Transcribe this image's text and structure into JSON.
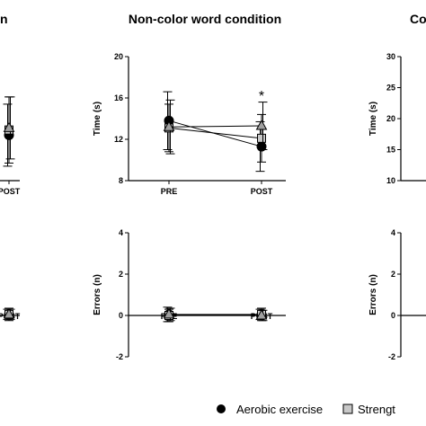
{
  "chart_data": [
    {
      "id": "left_time",
      "type": "line",
      "title": "n",
      "xlabel": "",
      "ylabel": "",
      "categories": [
        "PRE",
        "POST"
      ],
      "category_labels": [
        "",
        "POST"
      ],
      "ylim": [
        8,
        20
      ],
      "yticks": [],
      "series": [
        {
          "name": "Aerobic exercise",
          "marker": "circle",
          "values": [
            null,
            12.4
          ],
          "err": [
            null,
            3.0
          ]
        },
        {
          "name": "Strengt",
          "marker": "square",
          "values": [
            null,
            12.9
          ],
          "err": [
            null,
            3.2
          ]
        },
        {
          "name": "",
          "marker": "triangle",
          "values": [
            null,
            13.1
          ],
          "err": [
            null,
            3.0
          ]
        }
      ]
    },
    {
      "id": "middle_time",
      "type": "line",
      "title": "Non-color word condition",
      "xlabel": "",
      "ylabel": "Time (s)",
      "categories": [
        "PRE",
        "POST"
      ],
      "category_labels": [
        "PRE",
        "POST"
      ],
      "ylim": [
        8,
        20
      ],
      "yticks": [
        "8",
        "12",
        "16",
        "20"
      ],
      "annotation": "*",
      "series": [
        {
          "name": "Aerobic exercise",
          "marker": "circle",
          "values": [
            13.8,
            11.3
          ],
          "err": [
            2.8,
            2.4
          ]
        },
        {
          "name": "Strengt",
          "marker": "square",
          "values": [
            13.1,
            12.1
          ],
          "err": [
            2.3,
            2.3
          ]
        },
        {
          "name": "",
          "marker": "triangle",
          "values": [
            13.2,
            13.3
          ],
          "err": [
            2.6,
            2.3
          ]
        }
      ]
    },
    {
      "id": "right_time",
      "type": "line",
      "title": "Co",
      "xlabel": "",
      "ylabel": "Time (s)",
      "categories": [
        "PRE",
        "POST"
      ],
      "category_labels": [
        "",
        ""
      ],
      "ylim": [
        10,
        30
      ],
      "yticks": [
        "10",
        "15",
        "20",
        "25",
        "30"
      ],
      "series": []
    },
    {
      "id": "left_errors",
      "type": "line",
      "title": "",
      "xlabel": "",
      "ylabel": "",
      "categories": [
        "PRE",
        "POST"
      ],
      "category_labels": [
        "",
        "POST"
      ],
      "ylim": [
        -2,
        4
      ],
      "yticks": [],
      "series": [
        {
          "name": "Aerobic exercise",
          "marker": "circle",
          "values": [
            null,
            0.05
          ],
          "err": [
            null,
            0.25
          ]
        },
        {
          "name": "Strengt",
          "marker": "square",
          "values": [
            null,
            0.05
          ],
          "err": [
            null,
            0.3
          ]
        },
        {
          "name": "",
          "marker": "triangle",
          "values": [
            null,
            0.05
          ],
          "err": [
            null,
            0.25
          ]
        }
      ]
    },
    {
      "id": "middle_errors",
      "type": "line",
      "title": "",
      "xlabel": "",
      "ylabel": "Errors (n)",
      "categories": [
        "PRE",
        "POST"
      ],
      "category_labels": [
        "PRE",
        "POST"
      ],
      "ylim": [
        -2,
        4
      ],
      "yticks": [
        "-2",
        "0",
        "2",
        "4"
      ],
      "series": [
        {
          "name": "Aerobic exercise",
          "marker": "circle",
          "values": [
            0.05,
            0.05
          ],
          "err": [
            0.35,
            0.25
          ]
        },
        {
          "name": "Strengt",
          "marker": "square",
          "values": [
            0.0,
            0.05
          ],
          "err": [
            0.3,
            0.3
          ]
        },
        {
          "name": "",
          "marker": "triangle",
          "values": [
            0.05,
            0.0
          ],
          "err": [
            0.3,
            0.25
          ]
        }
      ]
    },
    {
      "id": "right_errors",
      "type": "line",
      "title": "",
      "xlabel": "",
      "ylabel": "Errors (n)",
      "categories": [
        "PRE",
        "POST"
      ],
      "category_labels": [
        "",
        ""
      ],
      "ylim": [
        -2,
        4
      ],
      "yticks": [
        "-2",
        "0",
        "2",
        "4"
      ],
      "series": []
    }
  ],
  "legend": {
    "placement": "bottom",
    "entries": [
      {
        "label": "Aerobic exercise",
        "marker": "circle"
      },
      {
        "label": "Strengt",
        "marker": "square"
      }
    ]
  },
  "colors": {
    "circle_fill": "#000000",
    "square_fill": "#c8c8c8",
    "triangle_fill": "#a0a0a0",
    "line": "#000000"
  }
}
